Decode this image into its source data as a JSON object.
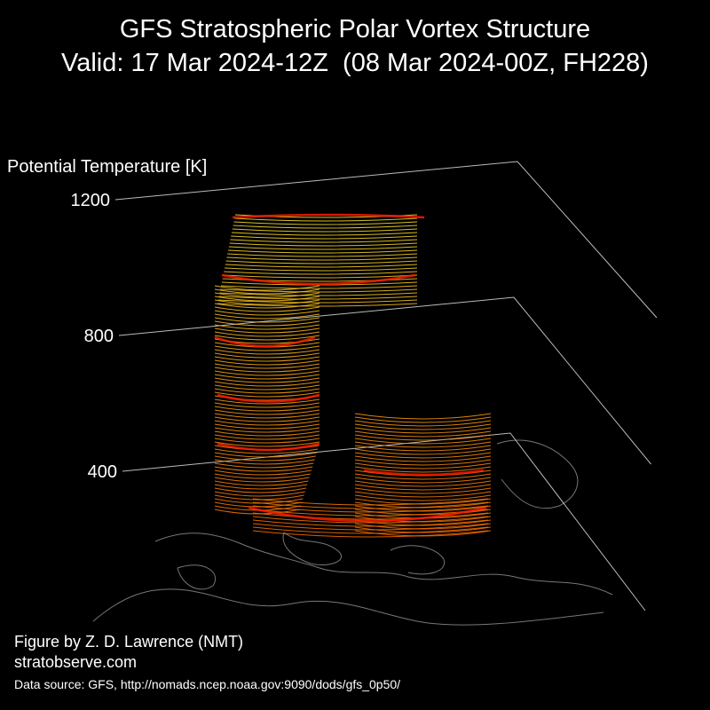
{
  "chart_data": {
    "type": "vortex3d",
    "title": [
      "GFS Stratospheric Polar Vortex Structure",
      "Valid: 17 Mar 2024-12Z  (08 Mar 2024-00Z, FH228)"
    ],
    "zlabel": "Potential Temperature [K]",
    "zlim": [
      400,
      1200
    ],
    "zticks": [
      400,
      800,
      1200
    ]
  },
  "credits": {
    "author": "Figure by Z. D. Lawrence (NMT)",
    "website": "stratobserve.com",
    "source": "Data source: GFS, http://nomads.ncep.noaa.gov:9090/dods/gfs_0p50/"
  }
}
